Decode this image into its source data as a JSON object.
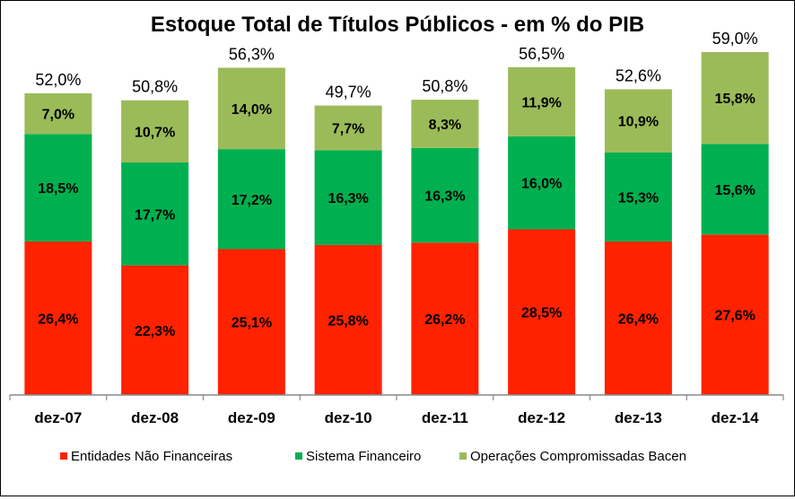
{
  "chart_data": {
    "type": "bar",
    "stacked": true,
    "title": "Estoque Total de Títulos Públicos - em % do PIB",
    "xlabel": "",
    "ylabel": "",
    "ylim": [
      0,
      62
    ],
    "grid": false,
    "legend_position": "bottom",
    "categories": [
      "dez-07",
      "dez-08",
      "dez-09",
      "dez-10",
      "dez-11",
      "dez-12",
      "dez-13",
      "dez-14"
    ],
    "series": [
      {
        "name": "Entidades Não Financeiras",
        "color": "#ff2200",
        "values": [
          26.4,
          22.3,
          25.1,
          25.8,
          26.2,
          28.5,
          26.4,
          27.6
        ],
        "labels": [
          "26,4%",
          "22,3%",
          "25,1%",
          "25,8%",
          "26,2%",
          "28,5%",
          "26,4%",
          "27,6%"
        ]
      },
      {
        "name": "Sistema Financeiro",
        "color": "#00b050",
        "values": [
          18.5,
          17.7,
          17.2,
          16.3,
          16.3,
          16.0,
          15.3,
          15.6
        ],
        "labels": [
          "18,5%",
          "17,7%",
          "17,2%",
          "16,3%",
          "16,3%",
          "16,0%",
          "15,3%",
          "15,6%"
        ]
      },
      {
        "name": "Operações Compromissadas Bacen",
        "color": "#9bbb59",
        "values": [
          7.0,
          10.7,
          14.0,
          7.7,
          8.3,
          11.9,
          10.9,
          15.8
        ],
        "labels": [
          "7,0%",
          "10,7%",
          "14,0%",
          "7,7%",
          "8,3%",
          "11,9%",
          "10,9%",
          "15,8%"
        ]
      }
    ],
    "totals": [
      52.0,
      50.8,
      56.3,
      49.7,
      50.8,
      56.5,
      52.6,
      59.0
    ],
    "total_labels": [
      "52,0%",
      "50,8%",
      "56,3%",
      "49,7%",
      "50,8%",
      "56,5%",
      "52,6%",
      "59,0%"
    ]
  }
}
